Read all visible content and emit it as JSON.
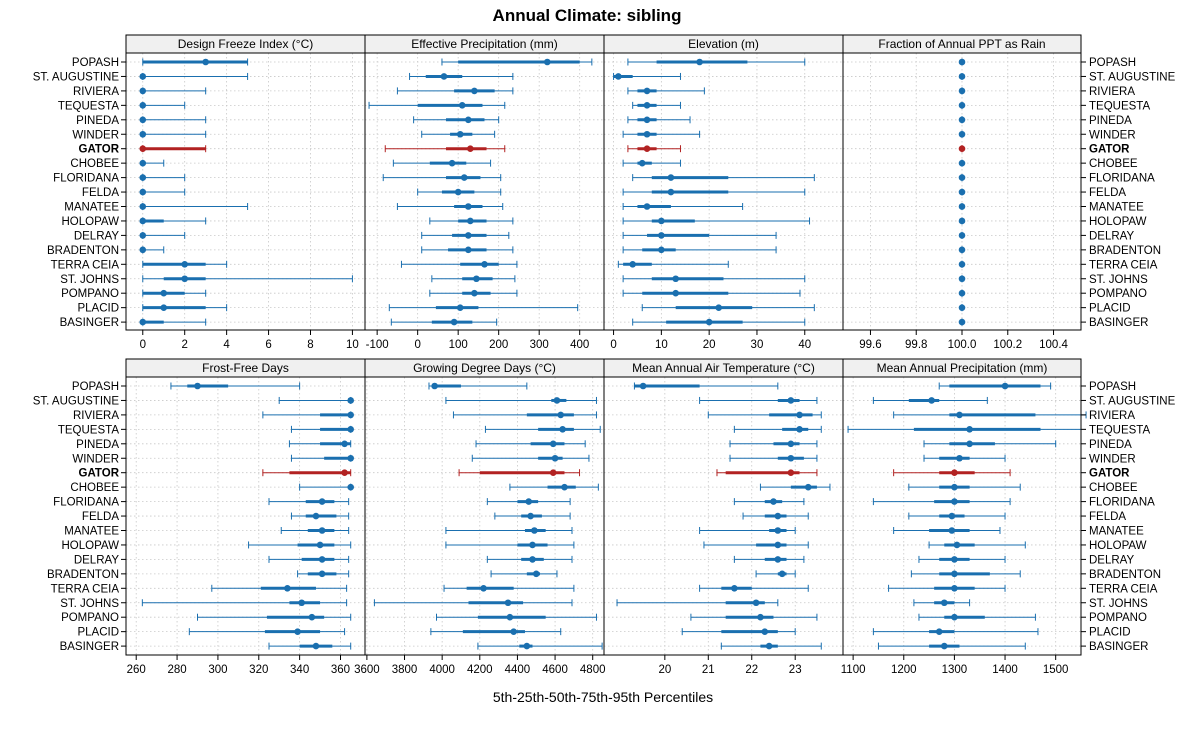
{
  "colors": {
    "normal": "#1a6faf",
    "highlight": "#b22222",
    "strip_bg": "#f0f0f0",
    "grid": "#c8c8c8",
    "frame": "#000000"
  },
  "chart_data": {
    "type": "dotplot-percentiles",
    "title": "Annual Climate: sibling",
    "xlabel": "5th-25th-50th-75th-95th Percentiles",
    "highlight": "GATOR",
    "sites": [
      "POPASH",
      "ST. AUGUSTINE",
      "RIVIERA",
      "TEQUESTA",
      "PINEDA",
      "WINDER",
      "GATOR",
      "CHOBEE",
      "FLORIDANA",
      "FELDA",
      "MANATEE",
      "HOLOPAW",
      "DELRAY",
      "BRADENTON",
      "TERRA CEIA",
      "ST. JOHNS",
      "POMPANO",
      "PLACID",
      "BASINGER"
    ],
    "panels": [
      {
        "title": "Design Freeze Index (°C)",
        "xlim": [
          -0.8,
          10.6
        ],
        "ticks": [
          "0",
          "2",
          "4",
          "6",
          "8",
          "10"
        ],
        "p": [
          [
            0,
            0,
            3,
            5,
            5
          ],
          [
            0,
            0,
            0,
            0,
            5
          ],
          [
            0,
            0,
            0,
            0,
            3
          ],
          [
            0,
            0,
            0,
            0,
            2
          ],
          [
            0,
            0,
            0,
            0,
            3
          ],
          [
            0,
            0,
            0,
            0,
            3
          ],
          [
            0,
            0,
            0,
            3,
            3
          ],
          [
            0,
            0,
            0,
            0,
            1
          ],
          [
            0,
            0,
            0,
            0,
            2
          ],
          [
            0,
            0,
            0,
            0,
            2
          ],
          [
            0,
            0,
            0,
            0,
            5
          ],
          [
            0,
            0,
            0,
            1,
            3
          ],
          [
            0,
            0,
            0,
            0,
            2
          ],
          [
            0,
            0,
            0,
            0,
            1
          ],
          [
            0,
            0,
            2,
            3,
            4
          ],
          [
            0,
            1,
            2,
            3,
            10
          ],
          [
            0,
            0,
            1,
            2,
            3
          ],
          [
            0,
            0,
            1,
            3,
            4
          ],
          [
            0,
            0,
            0,
            1,
            3
          ]
        ]
      },
      {
        "title": "Effective Precipitation (mm)",
        "xlim": [
          -130,
          460
        ],
        "ticks": [
          "-100",
          "0",
          "100",
          "200",
          "300",
          "400"
        ],
        "p": [
          [
            60,
            100,
            320,
            400,
            430
          ],
          [
            -20,
            20,
            65,
            110,
            235
          ],
          [
            -50,
            90,
            140,
            190,
            235
          ],
          [
            -120,
            0,
            110,
            160,
            215
          ],
          [
            -10,
            70,
            125,
            165,
            200
          ],
          [
            10,
            80,
            105,
            135,
            190
          ],
          [
            -80,
            70,
            130,
            170,
            215
          ],
          [
            -60,
            30,
            85,
            120,
            180
          ],
          [
            -85,
            70,
            115,
            155,
            205
          ],
          [
            0,
            60,
            100,
            140,
            205
          ],
          [
            -50,
            90,
            125,
            160,
            210
          ],
          [
            30,
            100,
            130,
            170,
            235
          ],
          [
            10,
            85,
            125,
            170,
            225
          ],
          [
            10,
            75,
            125,
            170,
            235
          ],
          [
            -40,
            105,
            165,
            200,
            245
          ],
          [
            35,
            110,
            145,
            185,
            240
          ],
          [
            30,
            110,
            140,
            180,
            245
          ],
          [
            -70,
            45,
            105,
            150,
            395
          ],
          [
            -65,
            35,
            90,
            135,
            195
          ]
        ]
      },
      {
        "title": "Elevation (m)",
        "xlim": [
          -2,
          48
        ],
        "ticks": [
          "0",
          "10",
          "20",
          "30",
          "40"
        ],
        "p": [
          [
            3,
            9,
            18,
            28,
            40
          ],
          [
            0,
            0,
            1,
            4,
            14
          ],
          [
            3,
            5,
            7,
            9,
            19
          ],
          [
            4,
            5,
            7,
            9,
            14
          ],
          [
            3,
            5,
            7,
            9,
            16
          ],
          [
            2,
            5,
            7,
            9,
            18
          ],
          [
            3,
            5,
            7,
            9,
            14
          ],
          [
            2,
            5,
            6,
            8,
            14
          ],
          [
            4,
            8,
            12,
            24,
            42
          ],
          [
            2,
            8,
            12,
            24,
            40
          ],
          [
            2,
            5,
            7,
            12,
            27
          ],
          [
            2,
            8,
            10,
            17,
            41
          ],
          [
            2,
            7,
            10,
            20,
            34
          ],
          [
            2,
            6,
            10,
            13,
            34
          ],
          [
            1,
            2,
            4,
            8,
            24
          ],
          [
            2,
            8,
            13,
            23,
            40
          ],
          [
            2,
            6,
            13,
            24,
            39
          ],
          [
            6,
            13,
            22,
            29,
            42
          ],
          [
            4,
            11,
            20,
            27,
            40
          ]
        ]
      },
      {
        "title": "Fraction of Annual PPT as Rain",
        "xlim": [
          99.48,
          100.52
        ],
        "ticks": [
          "99.6",
          "99.8",
          "100.0",
          "100.2",
          "100.4"
        ],
        "p": [
          [
            100,
            100,
            100,
            100,
            100
          ],
          [
            100,
            100,
            100,
            100,
            100
          ],
          [
            100,
            100,
            100,
            100,
            100
          ],
          [
            100,
            100,
            100,
            100,
            100
          ],
          [
            100,
            100,
            100,
            100,
            100
          ],
          [
            100,
            100,
            100,
            100,
            100
          ],
          [
            100,
            100,
            100,
            100,
            100
          ],
          [
            100,
            100,
            100,
            100,
            100
          ],
          [
            100,
            100,
            100,
            100,
            100
          ],
          [
            100,
            100,
            100,
            100,
            100
          ],
          [
            100,
            100,
            100,
            100,
            100
          ],
          [
            100,
            100,
            100,
            100,
            100
          ],
          [
            100,
            100,
            100,
            100,
            100
          ],
          [
            100,
            100,
            100,
            100,
            100
          ],
          [
            100,
            100,
            100,
            100,
            100
          ],
          [
            100,
            100,
            100,
            100,
            100
          ],
          [
            100,
            100,
            100,
            100,
            100
          ],
          [
            100,
            100,
            100,
            100,
            100
          ],
          [
            100,
            100,
            100,
            100,
            100
          ]
        ]
      },
      {
        "title": "Frost-Free Days",
        "xlim": [
          255,
          372
        ],
        "ticks": [
          "260",
          "280",
          "300",
          "320",
          "340",
          "360"
        ],
        "p": [
          [
            277,
            285,
            290,
            305,
            340
          ],
          [
            330,
            365,
            365,
            365,
            365
          ],
          [
            322,
            350,
            365,
            365,
            365
          ],
          [
            336,
            350,
            365,
            365,
            365
          ],
          [
            335,
            350,
            362,
            365,
            365
          ],
          [
            336,
            352,
            365,
            365,
            365
          ],
          [
            322,
            335,
            362,
            365,
            365
          ],
          [
            340,
            364,
            365,
            365,
            365
          ],
          [
            325,
            343,
            351,
            357,
            364
          ],
          [
            336,
            343,
            348,
            358,
            364
          ],
          [
            331,
            344,
            351,
            357,
            364
          ],
          [
            315,
            339,
            350,
            357,
            365
          ],
          [
            325,
            341,
            351,
            357,
            364
          ],
          [
            339,
            344,
            351,
            358,
            364
          ],
          [
            297,
            321,
            334,
            348,
            363
          ],
          [
            263,
            335,
            341,
            350,
            363
          ],
          [
            290,
            324,
            346,
            352,
            365
          ],
          [
            286,
            323,
            339,
            350,
            362
          ],
          [
            325,
            340,
            348,
            356,
            365
          ]
        ]
      },
      {
        "title": "Growing Degree Days (°C)",
        "xlim": [
          3590,
          4860
        ],
        "ticks": [
          "3600",
          "3800",
          "4000",
          "4200",
          "4400",
          "4600",
          "4800"
        ],
        "p": [
          [
            3930,
            3950,
            3960,
            4100,
            4450
          ],
          [
            4020,
            4580,
            4610,
            4660,
            4820
          ],
          [
            4060,
            4450,
            4630,
            4700,
            4820
          ],
          [
            4230,
            4510,
            4640,
            4700,
            4840
          ],
          [
            4180,
            4470,
            4590,
            4650,
            4760
          ],
          [
            4160,
            4510,
            4600,
            4640,
            4780
          ],
          [
            4090,
            4200,
            4590,
            4650,
            4730
          ],
          [
            4360,
            4560,
            4650,
            4710,
            4830
          ],
          [
            4240,
            4400,
            4460,
            4510,
            4680
          ],
          [
            4280,
            4420,
            4470,
            4530,
            4680
          ],
          [
            4020,
            4440,
            4490,
            4550,
            4690
          ],
          [
            4020,
            4400,
            4480,
            4560,
            4700
          ],
          [
            4240,
            4420,
            4480,
            4540,
            4690
          ],
          [
            4260,
            4450,
            4500,
            4520,
            4610
          ],
          [
            4010,
            4130,
            4220,
            4380,
            4700
          ],
          [
            3640,
            4140,
            4350,
            4430,
            4690
          ],
          [
            3970,
            4190,
            4360,
            4550,
            4820
          ],
          [
            3940,
            4110,
            4380,
            4440,
            4630
          ],
          [
            4190,
            4410,
            4450,
            4480,
            4850
          ]
        ]
      },
      {
        "title": "Mean Annual Air Temperature (°C)",
        "xlim": [
          18.6,
          24.1
        ],
        "ticks": [
          "20",
          "21",
          "22",
          "23"
        ],
        "p": [
          [
            19.3,
            19.3,
            19.5,
            20.8,
            22.6
          ],
          [
            20.8,
            22.6,
            22.9,
            23.1,
            23.5
          ],
          [
            21.0,
            22.4,
            23.1,
            23.4,
            23.6
          ],
          [
            21.6,
            22.7,
            23.1,
            23.3,
            23.6
          ],
          [
            21.5,
            22.5,
            22.9,
            23.1,
            23.5
          ],
          [
            21.5,
            22.6,
            22.9,
            23.2,
            23.5
          ],
          [
            21.2,
            21.4,
            22.9,
            23.1,
            23.5
          ],
          [
            22.2,
            22.9,
            23.3,
            23.5,
            23.8
          ],
          [
            21.6,
            22.3,
            22.5,
            22.7,
            23.2
          ],
          [
            21.8,
            22.3,
            22.6,
            22.8,
            23.3
          ],
          [
            20.8,
            22.4,
            22.6,
            22.8,
            23.0
          ],
          [
            20.9,
            22.1,
            22.6,
            22.8,
            23.3
          ],
          [
            21.6,
            22.3,
            22.6,
            22.8,
            23.2
          ],
          [
            22.1,
            22.6,
            22.7,
            22.8,
            23.0
          ],
          [
            20.8,
            21.3,
            21.6,
            22.0,
            23.3
          ],
          [
            18.9,
            21.4,
            22.1,
            22.3,
            22.6
          ],
          [
            20.6,
            21.4,
            22.2,
            22.5,
            23.5
          ],
          [
            20.4,
            21.3,
            22.3,
            22.6,
            23.0
          ],
          [
            21.3,
            22.2,
            22.4,
            22.6,
            23.6
          ]
        ]
      },
      {
        "title": "Mean Annual Precipitation (mm)",
        "xlim": [
          1080,
          1550
        ],
        "ticks": [
          "1100",
          "1200",
          "1300",
          "1400",
          "1500"
        ],
        "p": [
          [
            1270,
            1290,
            1400,
            1470,
            1490
          ],
          [
            1140,
            1210,
            1255,
            1270,
            1365
          ],
          [
            1180,
            1290,
            1310,
            1460,
            1560
          ],
          [
            1090,
            1220,
            1330,
            1470,
            1550
          ],
          [
            1240,
            1290,
            1330,
            1380,
            1500
          ],
          [
            1240,
            1270,
            1310,
            1330,
            1400
          ],
          [
            1180,
            1270,
            1300,
            1340,
            1410
          ],
          [
            1210,
            1270,
            1300,
            1330,
            1430
          ],
          [
            1140,
            1260,
            1300,
            1330,
            1410
          ],
          [
            1210,
            1270,
            1295,
            1320,
            1400
          ],
          [
            1180,
            1250,
            1295,
            1330,
            1390
          ],
          [
            1250,
            1280,
            1305,
            1340,
            1440
          ],
          [
            1230,
            1270,
            1300,
            1330,
            1400
          ],
          [
            1215,
            1270,
            1300,
            1370,
            1430
          ],
          [
            1170,
            1260,
            1300,
            1340,
            1400
          ],
          [
            1220,
            1260,
            1280,
            1300,
            1330
          ],
          [
            1230,
            1280,
            1300,
            1360,
            1460
          ],
          [
            1140,
            1250,
            1270,
            1300,
            1465
          ],
          [
            1150,
            1250,
            1280,
            1310,
            1440
          ]
        ]
      }
    ]
  }
}
